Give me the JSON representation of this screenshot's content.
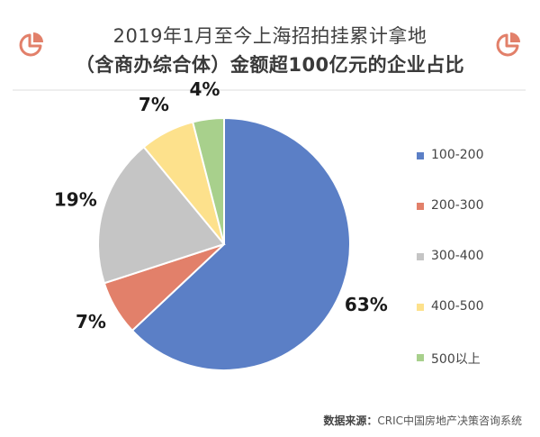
{
  "chart_data": {
    "type": "pie",
    "title": "2019年1月至今上海招拍挂累计拿地",
    "subtitle": "（含商办综合体）金额超100亿元的企业占比",
    "categories": [
      "100-200",
      "200-300",
      "300-400",
      "400-500",
      "500以上"
    ],
    "values": [
      63,
      7,
      19,
      7,
      4
    ],
    "data_labels": [
      "63%",
      "7%",
      "19%",
      "7%",
      "4%"
    ],
    "colors": [
      "#5b7fc6",
      "#e2806a",
      "#c5c5c5",
      "#fde18c",
      "#a8d08c"
    ],
    "legend_position": "right",
    "start": "top, clockwise"
  },
  "source": {
    "label": "数据来源：",
    "text": "CRIC中国房地产决策咨询系统"
  },
  "icons": {
    "left": "pie-chart-icon",
    "right": "pie-chart-icon",
    "color": "#e2806a"
  }
}
